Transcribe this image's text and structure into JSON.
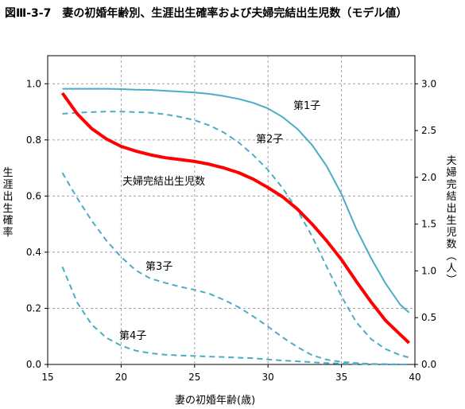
{
  "title": "図Ⅲ-3-7　妻の初婚年齢別、生涯出生確率および夫婦完結出生児数（モデル値）",
  "colors": {
    "birth_probability": "#4bacc6",
    "completed_births": "#ff0000",
    "grid": "#a0a0a0",
    "axis": "#000000"
  },
  "chart_data": {
    "type": "line",
    "title": "図Ⅲ-3-7　妻の初婚年齢別、生涯出生確率および夫婦完結出生児数（モデル値）",
    "xlabel": "妻の初婚年齢(歳)",
    "ylabel": "生涯出生確率",
    "y2label": "夫婦完結出生児数（人）",
    "xlim": [
      15,
      40
    ],
    "ylim": [
      0,
      1.1
    ],
    "y2lim": [
      0,
      3.3
    ],
    "xticks": [
      15,
      20,
      25,
      30,
      35,
      40
    ],
    "yticks": [
      0.0,
      0.2,
      0.4,
      0.6,
      0.8,
      1.0
    ],
    "y2ticks": [
      0.0,
      0.5,
      1.0,
      1.5,
      2.0,
      2.5,
      3.0
    ],
    "xtick_labels": [
      "15",
      "20",
      "25",
      "30",
      "35",
      "40"
    ],
    "ytick_labels": [
      "0.0",
      "0.2",
      "0.4",
      "0.6",
      "0.8",
      "1.0"
    ],
    "y2tick_labels": [
      "0.0",
      "0.5",
      "1.0",
      "1.5",
      "2.0",
      "2.5",
      "3.0"
    ],
    "grid": true,
    "series": [
      {
        "name": "第1子",
        "axis": "left",
        "style": "solid",
        "color": "#4bacc6",
        "x": [
          16,
          17,
          18,
          19,
          20,
          21,
          22,
          23,
          24,
          25,
          26,
          27,
          28,
          29,
          30,
          31,
          32,
          33,
          34,
          35,
          36,
          37,
          38,
          39,
          39.6
        ],
        "y": [
          0.982,
          0.982,
          0.982,
          0.982,
          0.981,
          0.979,
          0.978,
          0.975,
          0.972,
          0.969,
          0.964,
          0.956,
          0.946,
          0.932,
          0.912,
          0.881,
          0.839,
          0.782,
          0.706,
          0.607,
          0.484,
          0.38,
          0.289,
          0.213,
          0.185
        ]
      },
      {
        "name": "第2子",
        "axis": "left",
        "style": "dashed",
        "color": "#4bacc6",
        "x": [
          16,
          17,
          18,
          19,
          20,
          21,
          22,
          23,
          24,
          25,
          26,
          27,
          28,
          29,
          30,
          31,
          32,
          33,
          34,
          35,
          36,
          37,
          38,
          39,
          39.6
        ],
        "y": [
          0.893,
          0.897,
          0.899,
          0.901,
          0.901,
          0.899,
          0.897,
          0.891,
          0.882,
          0.87,
          0.852,
          0.826,
          0.791,
          0.746,
          0.693,
          0.628,
          0.549,
          0.457,
          0.347,
          0.243,
          0.151,
          0.091,
          0.055,
          0.033,
          0.025
        ]
      },
      {
        "name": "第3子",
        "axis": "left",
        "style": "dashed",
        "color": "#4bacc6",
        "x": [
          16,
          17,
          18,
          19,
          20,
          21,
          22,
          23,
          24,
          25,
          26,
          27,
          28,
          29,
          30,
          31,
          32,
          33,
          34,
          35,
          36,
          37,
          38,
          39,
          39.6
        ],
        "y": [
          0.683,
          0.593,
          0.512,
          0.441,
          0.383,
          0.335,
          0.306,
          0.291,
          0.277,
          0.266,
          0.252,
          0.23,
          0.204,
          0.171,
          0.135,
          0.096,
          0.062,
          0.033,
          0.017,
          0.009,
          0.005,
          0.002,
          0.001,
          0.0,
          0.0
        ]
      },
      {
        "name": "第4子",
        "axis": "left",
        "style": "dashed",
        "color": "#4bacc6",
        "x": [
          16,
          17,
          18,
          19,
          20,
          21,
          22,
          23,
          24,
          25,
          26,
          27,
          28,
          29,
          30,
          31,
          32,
          33,
          34,
          35,
          36,
          37,
          38,
          39,
          39.6
        ],
        "y": [
          0.348,
          0.221,
          0.142,
          0.095,
          0.067,
          0.049,
          0.04,
          0.035,
          0.032,
          0.03,
          0.028,
          0.026,
          0.024,
          0.022,
          0.018,
          0.014,
          0.011,
          0.008,
          0.005,
          0.003,
          0.002,
          0.001,
          0.0,
          0.0,
          0.0
        ]
      },
      {
        "name": "夫婦完結出生児数",
        "axis": "right",
        "style": "solid",
        "color": "#ff0000",
        "x": [
          16,
          17,
          18,
          19,
          20,
          21,
          22,
          23,
          24,
          25,
          26,
          27,
          28,
          29,
          30,
          31,
          32,
          33,
          34,
          35,
          36,
          37,
          38,
          39,
          39.6
        ],
        "y": [
          2.9,
          2.68,
          2.52,
          2.41,
          2.33,
          2.28,
          2.24,
          2.21,
          2.19,
          2.17,
          2.14,
          2.1,
          2.05,
          1.98,
          1.89,
          1.79,
          1.66,
          1.5,
          1.32,
          1.12,
          0.89,
          0.67,
          0.47,
          0.32,
          0.23
        ]
      }
    ],
    "annotations": [
      "第1子",
      "第2子",
      "第3子",
      "第4子",
      "夫婦完結出生児数"
    ]
  }
}
